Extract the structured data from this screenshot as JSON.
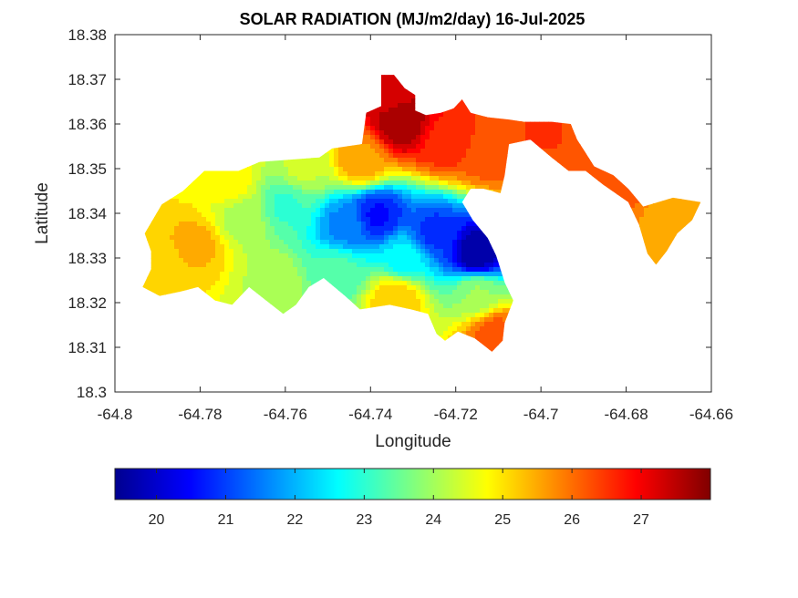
{
  "chart_data": {
    "type": "heatmap",
    "title": "SOLAR RADIATION (MJ/m2/day) 16-Jul-2025",
    "xlabel": "Longitude",
    "ylabel": "Latitude",
    "xlim": [
      -64.8,
      -64.66
    ],
    "ylim": [
      18.3,
      18.38
    ],
    "x_ticks": [
      -64.8,
      -64.78,
      -64.76,
      -64.74,
      -64.72,
      -64.7,
      -64.68,
      -64.66
    ],
    "x_tick_labels": [
      "-64.8",
      "-64.78",
      "-64.76",
      "-64.74",
      "-64.72",
      "-64.7",
      "-64.68",
      "-64.66"
    ],
    "y_ticks": [
      18.3,
      18.31,
      18.32,
      18.33,
      18.34,
      18.35,
      18.36,
      18.37,
      18.38
    ],
    "y_tick_labels": [
      "18.3",
      "18.31",
      "18.32",
      "18.33",
      "18.34",
      "18.35",
      "18.36",
      "18.37",
      "18.38"
    ],
    "grid": false,
    "colormap": "jet",
    "colorbar": {
      "orientation": "horizontal",
      "placement": "bottom",
      "range": [
        19.4,
        28.0
      ],
      "ticks": [
        20,
        21,
        22,
        23,
        24,
        25,
        26,
        27
      ],
      "tick_labels": [
        "20",
        "21",
        "22",
        "23",
        "24",
        "25",
        "26",
        "27"
      ]
    },
    "land_outline": [
      [
        -64.793,
        18.3355
      ],
      [
        -64.789,
        18.342
      ],
      [
        -64.784,
        18.345
      ],
      [
        -64.779,
        18.3495
      ],
      [
        -64.771,
        18.3495
      ],
      [
        -64.766,
        18.3515
      ],
      [
        -64.752,
        18.3525
      ],
      [
        -64.749,
        18.3545
      ],
      [
        -64.742,
        18.3555
      ],
      [
        -64.741,
        18.3625
      ],
      [
        -64.7375,
        18.364
      ],
      [
        -64.7375,
        18.371
      ],
      [
        -64.7345,
        18.371
      ],
      [
        -64.732,
        18.368
      ],
      [
        -64.7295,
        18.3665
      ],
      [
        -64.7295,
        18.363
      ],
      [
        -64.727,
        18.362
      ],
      [
        -64.7235,
        18.3625
      ],
      [
        -64.7205,
        18.3635
      ],
      [
        -64.7185,
        18.3655
      ],
      [
        -64.7165,
        18.3625
      ],
      [
        -64.7125,
        18.3615
      ],
      [
        -64.7075,
        18.361
      ],
      [
        -64.704,
        18.3605
      ],
      [
        -64.6975,
        18.3605
      ],
      [
        -64.693,
        18.36
      ],
      [
        -64.6915,
        18.3565
      ],
      [
        -64.6895,
        18.3535
      ],
      [
        -64.6875,
        18.3505
      ],
      [
        -64.683,
        18.3485
      ],
      [
        -64.6795,
        18.3455
      ],
      [
        -64.676,
        18.3415
      ],
      [
        -64.669,
        18.3435
      ],
      [
        -64.6625,
        18.3425
      ],
      [
        -64.6645,
        18.3385
      ],
      [
        -64.668,
        18.3355
      ],
      [
        -64.6705,
        18.3315
      ],
      [
        -64.673,
        18.3285
      ],
      [
        -64.675,
        18.331
      ],
      [
        -64.677,
        18.3375
      ],
      [
        -64.6795,
        18.3425
      ],
      [
        -64.6855,
        18.3465
      ],
      [
        -64.6895,
        18.3495
      ],
      [
        -64.6935,
        18.3495
      ],
      [
        -64.6975,
        18.3525
      ],
      [
        -64.7025,
        18.3565
      ],
      [
        -64.7075,
        18.3555
      ],
      [
        -64.7085,
        18.3485
      ],
      [
        -64.7095,
        18.3445
      ],
      [
        -64.7135,
        18.3455
      ],
      [
        -64.7165,
        18.3455
      ],
      [
        -64.7185,
        18.3425
      ],
      [
        -64.716,
        18.3385
      ],
      [
        -64.7125,
        18.3345
      ],
      [
        -64.7105,
        18.3305
      ],
      [
        -64.7085,
        18.3245
      ],
      [
        -64.7065,
        18.3205
      ],
      [
        -64.7085,
        18.3155
      ],
      [
        -64.709,
        18.3115
      ],
      [
        -64.7115,
        18.309
      ],
      [
        -64.7135,
        18.3105
      ],
      [
        -64.7155,
        18.312
      ],
      [
        -64.7195,
        18.3135
      ],
      [
        -64.7225,
        18.3115
      ],
      [
        -64.7245,
        18.313
      ],
      [
        -64.7265,
        18.3175
      ],
      [
        -64.7305,
        18.3185
      ],
      [
        -64.7355,
        18.3195
      ],
      [
        -64.7425,
        18.3185
      ],
      [
        -64.746,
        18.3215
      ],
      [
        -64.751,
        18.3255
      ],
      [
        -64.7545,
        18.3235
      ],
      [
        -64.7575,
        18.3195
      ],
      [
        -64.7605,
        18.3175
      ],
      [
        -64.7645,
        18.3205
      ],
      [
        -64.7685,
        18.3235
      ],
      [
        -64.7725,
        18.3195
      ],
      [
        -64.7765,
        18.3205
      ],
      [
        -64.7805,
        18.3235
      ],
      [
        -64.7845,
        18.3225
      ],
      [
        -64.7895,
        18.3215
      ],
      [
        -64.7935,
        18.3235
      ],
      [
        -64.7915,
        18.3275
      ],
      [
        -64.7915,
        18.3315
      ]
    ],
    "field_centers": [
      {
        "lon": -64.7385,
        "lat": 18.3395,
        "value": 20.6
      },
      {
        "lon": -64.715,
        "lat": 18.331,
        "value": 19.6
      },
      {
        "lon": -64.725,
        "lat": 18.3355,
        "value": 20.9
      },
      {
        "lon": -64.746,
        "lat": 18.337,
        "value": 21.6
      },
      {
        "lon": -64.76,
        "lat": 18.342,
        "value": 23.1
      },
      {
        "lon": -64.77,
        "lat": 18.339,
        "value": 24.1
      },
      {
        "lon": -64.748,
        "lat": 18.327,
        "value": 23.3
      },
      {
        "lon": -64.732,
        "lat": 18.33,
        "value": 22.6
      },
      {
        "lon": -64.715,
        "lat": 18.322,
        "value": 23.9
      },
      {
        "lon": -64.781,
        "lat": 18.333,
        "value": 25.4
      },
      {
        "lon": -64.79,
        "lat": 18.327,
        "value": 25.1
      },
      {
        "lon": -64.733,
        "lat": 18.36,
        "value": 27.8
      },
      {
        "lon": -64.736,
        "lat": 18.367,
        "value": 27.3
      },
      {
        "lon": -64.722,
        "lat": 18.356,
        "value": 26.6
      },
      {
        "lon": -64.712,
        "lat": 18.353,
        "value": 26.2
      },
      {
        "lon": -64.7,
        "lat": 18.358,
        "value": 26.4
      },
      {
        "lon": -64.682,
        "lat": 18.347,
        "value": 26.3
      },
      {
        "lon": -64.671,
        "lat": 18.339,
        "value": 25.6
      },
      {
        "lon": -64.734,
        "lat": 18.321,
        "value": 25.3
      },
      {
        "lon": -64.711,
        "lat": 18.313,
        "value": 26.2
      },
      {
        "lon": -64.756,
        "lat": 18.35,
        "value": 24.3
      },
      {
        "lon": -64.742,
        "lat": 18.352,
        "value": 25.6
      },
      {
        "lon": -64.773,
        "lat": 18.347,
        "value": 24.8
      },
      {
        "lon": -64.763,
        "lat": 18.324,
        "value": 24.2
      }
    ]
  }
}
